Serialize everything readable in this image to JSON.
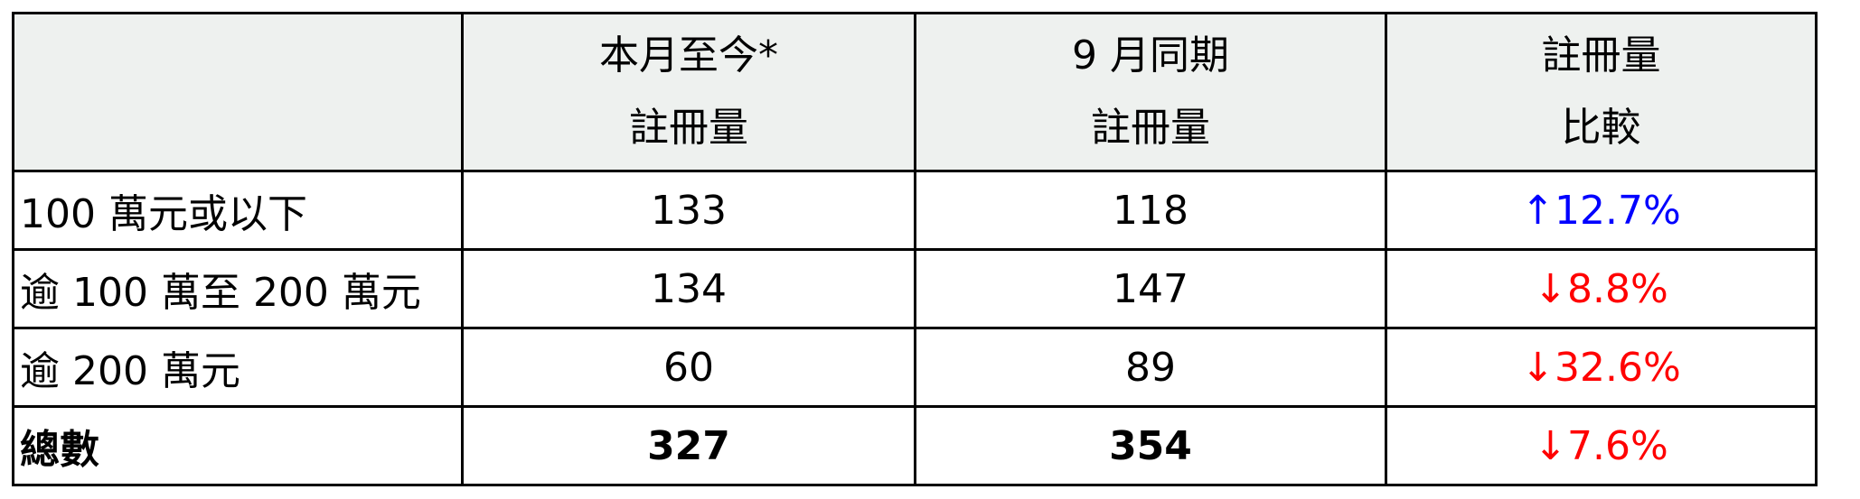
{
  "header": {
    "col1": "",
    "col2_line1": "本月至今*",
    "col2_line2": "註冊量",
    "col3_line1": "9 月同期",
    "col3_line2": "註冊量",
    "col4_line1": "註冊量",
    "col4_line2": "比較"
  },
  "rows": [
    {
      "label": "100 萬元或以下",
      "current": "133",
      "last": "118",
      "change": "↑12.7%",
      "direction": "up"
    },
    {
      "label": "逾 100 萬至 200 萬元",
      "current": "134",
      "last": "147",
      "change": "↓8.8%",
      "direction": "down"
    },
    {
      "label": "逾 200 萬元",
      "current": "60",
      "last": "89",
      "change": "↓32.6%",
      "direction": "down"
    },
    {
      "label": "總數",
      "current": "327",
      "last": "354",
      "change": "↓7.6%",
      "direction": "down"
    }
  ],
  "colors": {
    "up": "#0000ff",
    "down": "#ff0000",
    "header_bg": "#eef1ef"
  }
}
